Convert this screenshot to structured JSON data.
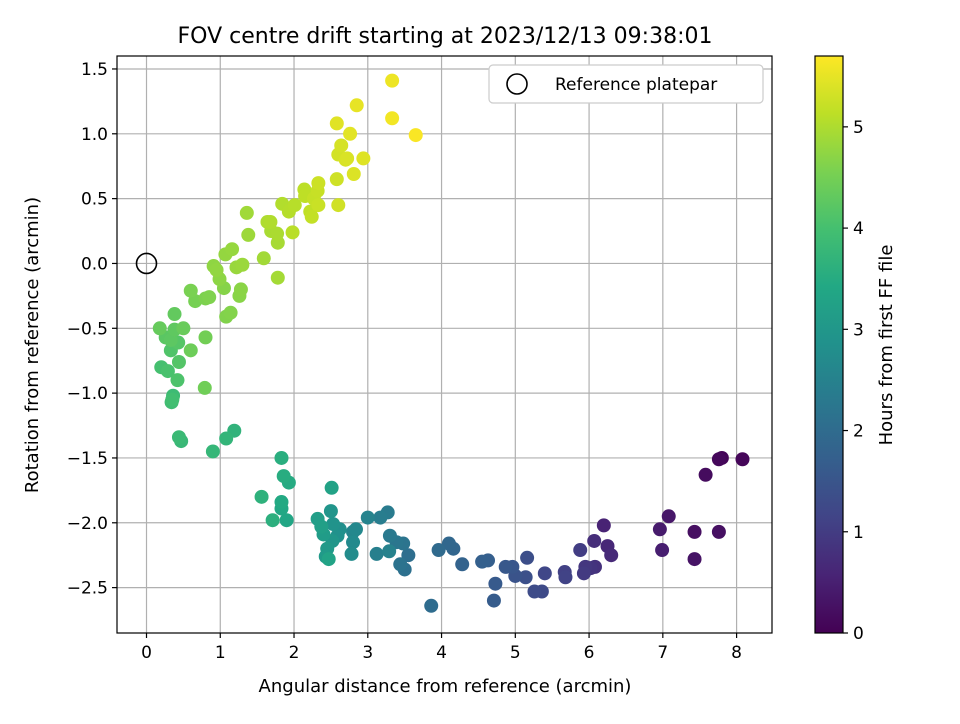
{
  "chart_data": {
    "type": "scatter",
    "title": "FOV centre drift starting at 2023/12/13 09:38:01",
    "xlabel": "Angular distance from reference (arcmin)",
    "ylabel": "Rotation from reference (arcmin)",
    "xlim": [
      -0.4,
      8.48
    ],
    "ylim": [
      -2.85,
      1.6
    ],
    "xticks": [
      0,
      1,
      2,
      3,
      4,
      5,
      6,
      7,
      8
    ],
    "xtick_labels": [
      "0",
      "1",
      "2",
      "3",
      "4",
      "5",
      "6",
      "7",
      "8"
    ],
    "yticks": [
      -2.5,
      -2.0,
      -1.5,
      -1.0,
      -0.5,
      0.0,
      0.5,
      1.0,
      1.5
    ],
    "ytick_labels": [
      "−2.5",
      "−2.0",
      "−1.5",
      "−1.0",
      "−0.5",
      "0.0",
      "0.5",
      "1.0",
      "1.5"
    ],
    "grid": true,
    "colormap": "viridis",
    "colorbar": {
      "label": "Hours from first FF file",
      "range": [
        0,
        5.7
      ],
      "ticks": [
        0,
        1,
        2,
        3,
        4,
        5
      ],
      "tick_labels": [
        "0",
        "1",
        "2",
        "3",
        "4",
        "5"
      ]
    },
    "legend": {
      "position": "top-right",
      "entries": [
        {
          "label": "Reference platepar",
          "marker": "open-circle"
        }
      ]
    },
    "reference_point": {
      "x": 0,
      "y": 0
    },
    "points": [
      [
        7.8,
        -1.5,
        0.05
      ],
      [
        8.08,
        -1.51,
        0.08
      ],
      [
        7.76,
        -1.51,
        0.12
      ],
      [
        7.58,
        -1.63,
        0.18
      ],
      [
        7.43,
        -2.07,
        0.22
      ],
      [
        7.76,
        -2.07,
        0.25
      ],
      [
        7.43,
        -2.28,
        0.3
      ],
      [
        7.08,
        -1.95,
        0.36
      ],
      [
        6.96,
        -2.05,
        0.42
      ],
      [
        6.99,
        -2.21,
        0.48
      ],
      [
        6.2,
        -2.02,
        0.55
      ],
      [
        6.25,
        -2.18,
        0.62
      ],
      [
        6.3,
        -2.25,
        0.68
      ],
      [
        6.07,
        -2.14,
        0.74
      ],
      [
        6.08,
        -2.34,
        0.8
      ],
      [
        6.02,
        -2.35,
        0.86
      ],
      [
        5.95,
        -2.34,
        0.9
      ],
      [
        5.93,
        -2.39,
        0.96
      ],
      [
        5.88,
        -2.21,
        1.02
      ],
      [
        5.67,
        -2.38,
        1.08
      ],
      [
        5.68,
        -2.42,
        1.12
      ],
      [
        5.4,
        -2.39,
        1.2
      ],
      [
        5.36,
        -2.53,
        1.26
      ],
      [
        5.26,
        -2.53,
        1.3
      ],
      [
        5.16,
        -2.27,
        1.36
      ],
      [
        5.14,
        -2.42,
        1.4
      ],
      [
        5.0,
        -2.41,
        1.46
      ],
      [
        4.96,
        -2.34,
        1.52
      ],
      [
        4.87,
        -2.34,
        1.56
      ],
      [
        4.73,
        -2.47,
        1.6
      ],
      [
        4.71,
        -2.6,
        1.64
      ],
      [
        4.63,
        -2.29,
        1.7
      ],
      [
        4.55,
        -2.3,
        1.74
      ],
      [
        4.28,
        -2.32,
        1.8
      ],
      [
        4.16,
        -2.2,
        1.86
      ],
      [
        4.1,
        -2.16,
        1.9
      ],
      [
        3.96,
        -2.21,
        1.96
      ],
      [
        3.86,
        -2.64,
        2.0
      ],
      [
        3.55,
        -2.25,
        2.06
      ],
      [
        3.5,
        -2.36,
        2.1
      ],
      [
        3.44,
        -2.32,
        2.16
      ],
      [
        3.48,
        -2.16,
        2.2
      ],
      [
        3.39,
        -2.15,
        2.24
      ],
      [
        3.3,
        -2.1,
        2.3
      ],
      [
        3.27,
        -1.92,
        2.35
      ],
      [
        3.17,
        -1.96,
        2.4
      ],
      [
        3.12,
        -2.24,
        2.44
      ],
      [
        3.29,
        -2.22,
        2.5
      ],
      [
        3.0,
        -1.96,
        2.54
      ],
      [
        2.8,
        -2.07,
        2.6
      ],
      [
        2.84,
        -2.05,
        2.65
      ],
      [
        2.8,
        -2.15,
        2.7
      ],
      [
        2.78,
        -2.24,
        2.74
      ],
      [
        2.62,
        -2.05,
        2.8
      ],
      [
        2.59,
        -2.1,
        2.84
      ],
      [
        2.53,
        -2.01,
        2.9
      ],
      [
        2.5,
        -1.91,
        2.94
      ],
      [
        2.52,
        -2.14,
        2.98
      ],
      [
        2.45,
        -2.2,
        3.04
      ],
      [
        2.43,
        -2.26,
        3.08
      ],
      [
        2.4,
        -2.09,
        3.12
      ],
      [
        2.32,
        -1.97,
        3.16
      ],
      [
        2.37,
        -2.03,
        3.2
      ],
      [
        2.51,
        -1.73,
        3.26
      ],
      [
        2.47,
        -2.28,
        3.3
      ],
      [
        1.9,
        -1.98,
        3.36
      ],
      [
        1.83,
        -1.89,
        3.4
      ],
      [
        1.83,
        -1.84,
        3.44
      ],
      [
        1.93,
        -1.69,
        3.48
      ],
      [
        1.86,
        -1.64,
        3.52
      ],
      [
        1.83,
        -1.5,
        3.56
      ],
      [
        1.71,
        -1.98,
        3.6
      ],
      [
        1.56,
        -1.8,
        3.64
      ],
      [
        1.19,
        -1.29,
        3.68
      ],
      [
        1.08,
        -1.35,
        3.72
      ],
      [
        0.9,
        -1.45,
        3.76
      ],
      [
        0.47,
        -1.37,
        3.8
      ],
      [
        0.44,
        -1.34,
        3.84
      ],
      [
        0.36,
        -1.02,
        3.88
      ],
      [
        0.34,
        -1.07,
        3.92
      ],
      [
        0.35,
        -1.05,
        3.96
      ],
      [
        0.2,
        -0.8,
        4.0
      ],
      [
        0.29,
        -0.83,
        4.04
      ],
      [
        0.42,
        -0.9,
        4.08
      ],
      [
        0.33,
        -0.67,
        4.12
      ],
      [
        0.44,
        -0.76,
        4.16
      ],
      [
        0.43,
        -0.61,
        4.18
      ],
      [
        0.26,
        -0.57,
        4.22
      ],
      [
        0.33,
        -0.59,
        4.25
      ],
      [
        0.38,
        -0.51,
        4.28
      ],
      [
        0.38,
        -0.39,
        4.32
      ],
      [
        0.18,
        -0.5,
        4.35
      ],
      [
        0.5,
        -0.5,
        4.38
      ],
      [
        0.6,
        -0.67,
        4.42
      ],
      [
        0.79,
        -0.96,
        4.45
      ],
      [
        0.8,
        -0.57,
        4.48
      ],
      [
        0.66,
        -0.29,
        4.52
      ],
      [
        0.6,
        -0.21,
        4.55
      ],
      [
        0.8,
        -0.27,
        4.58
      ],
      [
        0.85,
        -0.26,
        4.6
      ],
      [
        1.08,
        -0.41,
        4.62
      ],
      [
        1.14,
        -0.38,
        4.64
      ],
      [
        1.05,
        -0.19,
        4.66
      ],
      [
        1.26,
        -0.25,
        4.68
      ],
      [
        1.28,
        -0.2,
        4.7
      ],
      [
        0.99,
        -0.12,
        4.72
      ],
      [
        0.91,
        -0.02,
        4.74
      ],
      [
        0.95,
        -0.05,
        4.76
      ],
      [
        1.07,
        0.07,
        4.78
      ],
      [
        1.16,
        0.11,
        4.8
      ],
      [
        1.22,
        -0.03,
        4.82
      ],
      [
        1.3,
        -0.01,
        4.84
      ],
      [
        1.38,
        0.22,
        4.86
      ],
      [
        1.36,
        0.39,
        4.88
      ],
      [
        1.59,
        0.04,
        4.9
      ],
      [
        1.78,
        -0.11,
        4.92
      ],
      [
        1.78,
        0.16,
        4.94
      ],
      [
        1.69,
        0.25,
        4.96
      ],
      [
        1.77,
        0.23,
        4.98
      ],
      [
        1.64,
        0.32,
        5.0
      ],
      [
        1.68,
        0.32,
        5.02
      ],
      [
        1.84,
        0.46,
        5.04
      ],
      [
        1.93,
        0.4,
        5.06
      ],
      [
        2.01,
        0.45,
        5.08
      ],
      [
        1.98,
        0.24,
        5.1
      ],
      [
        2.14,
        0.57,
        5.12
      ],
      [
        2.15,
        0.52,
        5.14
      ],
      [
        2.22,
        0.4,
        5.16
      ],
      [
        2.24,
        0.36,
        5.18
      ],
      [
        2.27,
        0.5,
        5.2
      ],
      [
        2.32,
        0.56,
        5.22
      ],
      [
        2.33,
        0.45,
        5.24
      ],
      [
        2.33,
        0.62,
        5.26
      ],
      [
        2.58,
        0.65,
        5.28
      ],
      [
        2.6,
        0.45,
        5.3
      ],
      [
        2.6,
        0.84,
        5.32
      ],
      [
        2.64,
        0.91,
        5.34
      ],
      [
        2.7,
        0.8,
        5.36
      ],
      [
        2.72,
        0.81,
        5.38
      ],
      [
        2.81,
        0.69,
        5.4
      ],
      [
        2.94,
        0.81,
        5.42
      ],
      [
        2.58,
        1.08,
        5.44
      ],
      [
        2.76,
        1.0,
        5.46
      ],
      [
        2.85,
        1.22,
        5.5
      ],
      [
        3.33,
        1.41,
        5.56
      ],
      [
        3.33,
        1.12,
        5.6
      ],
      [
        3.65,
        0.99,
        5.66
      ]
    ]
  }
}
